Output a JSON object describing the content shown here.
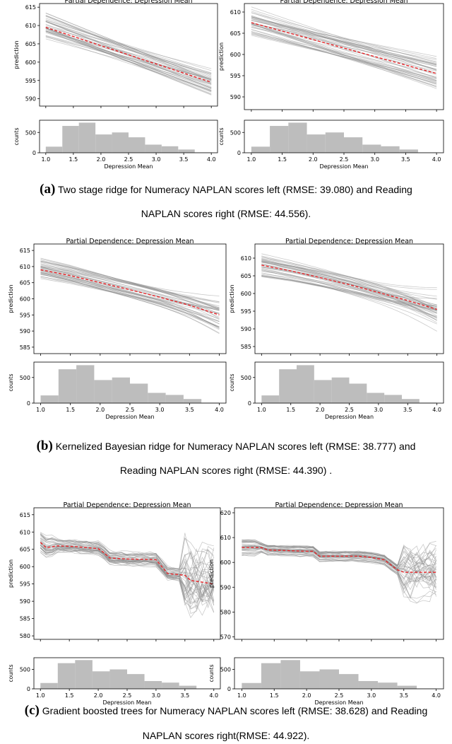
{
  "panels": [
    {
      "label": "(a)",
      "caption_line1": "Two stage ridge for Numeracy NAPLAN scores left (RMSE: 39.080) and Reading",
      "caption_line2": "NAPLAN scores right (RMSE: 44.556)."
    },
    {
      "label": "(b)",
      "caption_line1": "Kernelized Bayesian ridge for Numeracy NAPLAN scores left (RMSE: 38.777) and",
      "caption_line2": "Reading NAPLAN scores right (RMSE: 44.390) ."
    },
    {
      "label": "(c)",
      "caption_line1": "Gradient boosted trees for Numeracy NAPLAN scores left (RMSE: 38.628) and Reading",
      "caption_line2": "NAPLAN scores right(RMSE: 44.922)."
    }
  ],
  "colors": {
    "ice": "#8c8c8c",
    "mean": "#e8262a",
    "hist": "#bdbdbd"
  },
  "chart_data": [
    {
      "id": "a-left",
      "type": "line",
      "title": "Partial Dependence: Depression Mean",
      "xlabel": "Depression Mean",
      "ylabel": "prediction",
      "model": "linear",
      "xlim": [
        1.0,
        4.0
      ],
      "ylim": [
        588,
        616
      ],
      "yticks": [
        590,
        595,
        600,
        605,
        610,
        615
      ],
      "xticks": [
        1.0,
        1.5,
        2.0,
        2.5,
        3.0,
        3.5,
        4.0
      ],
      "series": [
        {
          "name": "ICE lines",
          "count": 40
        },
        {
          "name": "average",
          "x": [
            1.0,
            4.0
          ],
          "y": [
            609.5,
            594.5
          ]
        }
      ],
      "hist": {
        "ylabel": "counts",
        "yticks": [
          0,
          500
        ],
        "edges": [
          1.0,
          1.3,
          1.6,
          1.9,
          2.2,
          2.5,
          2.8,
          3.1,
          3.4,
          3.7,
          4.0
        ],
        "counts": [
          150,
          660,
          740,
          450,
          500,
          380,
          200,
          160,
          80,
          10
        ]
      }
    },
    {
      "id": "a-right",
      "type": "line",
      "title": "Partial Dependence: Depression Mean",
      "xlabel": "Depression Mean",
      "ylabel": "prediction",
      "model": "linear",
      "xlim": [
        1.0,
        4.0
      ],
      "ylim": [
        587,
        612
      ],
      "yticks": [
        590,
        595,
        600,
        605,
        610
      ],
      "xticks": [
        1.0,
        1.5,
        2.0,
        2.5,
        3.0,
        3.5,
        4.0
      ],
      "series": [
        {
          "name": "ICE lines",
          "count": 40
        },
        {
          "name": "average",
          "x": [
            1.0,
            4.0
          ],
          "y": [
            607.5,
            595.5
          ]
        }
      ],
      "hist": {
        "ylabel": "counts",
        "yticks": [
          0,
          500
        ],
        "edges": [
          1.0,
          1.3,
          1.6,
          1.9,
          2.2,
          2.5,
          2.8,
          3.1,
          3.4,
          3.7,
          4.0
        ],
        "counts": [
          150,
          660,
          740,
          450,
          500,
          380,
          200,
          160,
          80,
          10
        ]
      }
    },
    {
      "id": "b-left",
      "type": "line",
      "title": "Partial Dependence: Depression Mean",
      "xlabel": "Depression Mean",
      "ylabel": "prediction",
      "model": "curve",
      "xlim": [
        1.0,
        4.0
      ],
      "ylim": [
        583,
        617
      ],
      "yticks": [
        585,
        590,
        595,
        600,
        605,
        610,
        615
      ],
      "xticks": [
        1.0,
        1.5,
        2.0,
        2.5,
        3.0,
        3.5,
        4.0
      ],
      "series": [
        {
          "name": "ICE lines",
          "count": 40
        },
        {
          "name": "average",
          "x": [
            1.0,
            1.5,
            2.0,
            2.5,
            3.0,
            3.5,
            4.0
          ],
          "y": [
            609,
            607.2,
            605,
            602.8,
            600.5,
            598,
            595
          ]
        }
      ],
      "hist": {
        "ylabel": "counts",
        "yticks": [
          0,
          500
        ],
        "edges": [
          1.0,
          1.3,
          1.6,
          1.9,
          2.2,
          2.5,
          2.8,
          3.1,
          3.4,
          3.7,
          4.0
        ],
        "counts": [
          150,
          660,
          740,
          450,
          500,
          380,
          200,
          160,
          80,
          10
        ]
      }
    },
    {
      "id": "b-right",
      "type": "line",
      "title": "Partial Dependence: Depression Mean",
      "xlabel": "Depression Mean",
      "ylabel": "prediction",
      "model": "curve",
      "xlim": [
        1.0,
        4.0
      ],
      "ylim": [
        583,
        614
      ],
      "yticks": [
        585,
        590,
        595,
        600,
        605,
        610
      ],
      "xticks": [
        1.0,
        1.5,
        2.0,
        2.5,
        3.0,
        3.5,
        4.0
      ],
      "series": [
        {
          "name": "ICE lines",
          "count": 40
        },
        {
          "name": "average",
          "x": [
            1.0,
            1.5,
            2.0,
            2.5,
            3.0,
            3.5,
            4.0
          ],
          "y": [
            608,
            606.4,
            604.5,
            602.5,
            600.3,
            598,
            595.5
          ]
        }
      ],
      "hist": {
        "ylabel": "counts",
        "yticks": [
          0,
          500
        ],
        "edges": [
          1.0,
          1.3,
          1.6,
          1.9,
          2.2,
          2.5,
          2.8,
          3.1,
          3.4,
          3.7,
          4.0
        ],
        "counts": [
          150,
          660,
          740,
          450,
          500,
          380,
          200,
          160,
          80,
          10
        ]
      }
    },
    {
      "id": "c-left",
      "type": "line",
      "title": "Partial Dependence: Depression Mean",
      "xlabel": "Depression Mean",
      "ylabel": "prediction",
      "model": "step",
      "xlim": [
        1.0,
        4.0
      ],
      "ylim": [
        579,
        617
      ],
      "yticks": [
        580,
        585,
        590,
        595,
        600,
        605,
        610,
        615
      ],
      "xticks": [
        1.0,
        1.5,
        2.0,
        2.5,
        3.0,
        3.5,
        4.0
      ],
      "series": [
        {
          "name": "ICE lines",
          "count": 40
        },
        {
          "name": "average",
          "x": [
            1.0,
            1.1,
            1.3,
            1.6,
            2.0,
            2.1,
            2.2,
            2.5,
            3.0,
            3.1,
            3.2,
            3.5,
            3.6,
            3.8,
            4.0
          ],
          "y": [
            607,
            605.5,
            606,
            605.8,
            605.2,
            604,
            602.5,
            602.2,
            602,
            600,
            598,
            597.5,
            596,
            595.5,
            595
          ]
        }
      ],
      "hist": {
        "ylabel": "counts",
        "yticks": [
          0,
          500
        ],
        "edges": [
          1.0,
          1.3,
          1.6,
          1.9,
          2.2,
          2.5,
          2.8,
          3.1,
          3.4,
          3.7,
          4.0
        ],
        "counts": [
          150,
          660,
          740,
          450,
          500,
          380,
          200,
          160,
          80,
          10
        ]
      }
    },
    {
      "id": "c-right",
      "type": "line",
      "title": "Partial Dependence: Depression Mean",
      "xlabel": "Depression Mean",
      "ylabel": "prediction",
      "model": "step",
      "xlim": [
        1.0,
        4.0
      ],
      "ylim": [
        569,
        622
      ],
      "yticks": [
        570,
        580,
        590,
        600,
        610,
        620
      ],
      "xticks": [
        1.0,
        1.5,
        2.0,
        2.5,
        3.0,
        3.5,
        4.0
      ],
      "series": [
        {
          "name": "ICE lines",
          "count": 40
        },
        {
          "name": "average",
          "x": [
            1.0,
            1.3,
            1.4,
            2.0,
            2.1,
            2.2,
            2.8,
            3.0,
            3.2,
            3.4,
            3.5,
            3.7,
            4.0
          ],
          "y": [
            606,
            606,
            605,
            604.5,
            604.5,
            602.5,
            602.5,
            602,
            601,
            597,
            596,
            596,
            596
          ]
        }
      ],
      "hist": {
        "ylabel": "counts",
        "yticks": [
          0,
          500
        ],
        "edges": [
          1.0,
          1.3,
          1.6,
          1.9,
          2.2,
          2.5,
          2.8,
          3.1,
          3.4,
          3.7,
          4.0
        ],
        "counts": [
          150,
          660,
          740,
          450,
          500,
          380,
          200,
          160,
          80,
          10
        ]
      }
    }
  ]
}
